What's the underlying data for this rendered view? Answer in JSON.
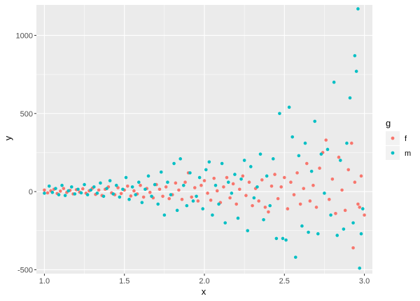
{
  "chart_data": {
    "type": "scatter",
    "title": "",
    "xlabel": "x",
    "ylabel": "y",
    "xlim": [
      0.95,
      3.05
    ],
    "ylim": [
      -525,
      1195
    ],
    "x_ticks": [
      "1.0",
      "1.5",
      "2.0",
      "2.5",
      "3.0"
    ],
    "y_ticks": [
      "-500",
      "0",
      "500",
      "1000"
    ],
    "x_tick_values": [
      1.0,
      1.5,
      2.0,
      2.5,
      3.0
    ],
    "y_tick_values": [
      -500,
      0,
      500,
      1000
    ],
    "grid": true,
    "legend": {
      "title": "g",
      "position": "right",
      "entries": [
        {
          "label": "f",
          "color": "#F8766D"
        },
        {
          "label": "m",
          "color": "#00BFC4"
        }
      ]
    },
    "series": [
      {
        "name": "f",
        "color": "#F8766D",
        "points": [
          [
            1.0,
            10
          ],
          [
            1.02,
            -8
          ],
          [
            1.04,
            5
          ],
          [
            1.06,
            15
          ],
          [
            1.08,
            -12
          ],
          [
            1.1,
            3
          ],
          [
            1.12,
            20
          ],
          [
            1.14,
            -5
          ],
          [
            1.16,
            8
          ],
          [
            1.18,
            -15
          ],
          [
            1.2,
            12
          ],
          [
            1.22,
            -3
          ],
          [
            1.24,
            18
          ],
          [
            1.26,
            -10
          ],
          [
            1.28,
            5
          ],
          [
            1.3,
            22
          ],
          [
            1.32,
            -18
          ],
          [
            1.34,
            10
          ],
          [
            1.36,
            -25
          ],
          [
            1.38,
            15
          ],
          [
            1.4,
            30
          ],
          [
            1.42,
            -8
          ],
          [
            1.44,
            -20
          ],
          [
            1.46,
            25
          ],
          [
            1.48,
            -12
          ],
          [
            1.5,
            10
          ],
          [
            1.52,
            35
          ],
          [
            1.54,
            -28
          ],
          [
            1.56,
            5
          ],
          [
            1.58,
            -15
          ],
          [
            1.6,
            40
          ],
          [
            1.62,
            -35
          ],
          [
            1.64,
            20
          ],
          [
            1.66,
            -5
          ],
          [
            1.68,
            -40
          ],
          [
            1.7,
            45
          ],
          [
            1.72,
            15
          ],
          [
            1.74,
            -30
          ],
          [
            1.76,
            30
          ],
          [
            1.78,
            -45
          ],
          [
            1.8,
            -20
          ],
          [
            1.82,
            55
          ],
          [
            1.84,
            10
          ],
          [
            1.86,
            -50
          ],
          [
            1.88,
            60
          ],
          [
            1.9,
            120
          ],
          [
            1.92,
            -35
          ],
          [
            1.94,
            25
          ],
          [
            1.96,
            -60
          ],
          [
            1.98,
            40
          ],
          [
            2.0,
            70
          ],
          [
            2.02,
            -10
          ],
          [
            2.04,
            -55
          ],
          [
            2.06,
            85
          ],
          [
            2.08,
            5
          ],
          [
            2.1,
            -70
          ],
          [
            2.12,
            30
          ],
          [
            2.14,
            90
          ],
          [
            2.16,
            -40
          ],
          [
            2.18,
            50
          ],
          [
            2.2,
            -80
          ],
          [
            2.22,
            15
          ],
          [
            2.24,
            100
          ],
          [
            2.26,
            -25
          ],
          [
            2.28,
            60
          ],
          [
            2.3,
            -90
          ],
          [
            2.32,
            20
          ],
          [
            2.34,
            -60
          ],
          [
            2.36,
            75
          ],
          [
            2.38,
            -100
          ],
          [
            2.4,
            -130
          ],
          [
            2.42,
            35
          ],
          [
            2.44,
            110
          ],
          [
            2.46,
            -45
          ],
          [
            2.48,
            30
          ],
          [
            2.5,
            90
          ],
          [
            2.52,
            -110
          ],
          [
            2.54,
            60
          ],
          [
            2.56,
            -20
          ],
          [
            2.58,
            120
          ],
          [
            2.6,
            -80
          ],
          [
            2.62,
            20
          ],
          [
            2.64,
            180
          ],
          [
            2.66,
            -60
          ],
          [
            2.68,
            40
          ],
          [
            2.7,
            -100
          ],
          [
            2.72,
            150
          ],
          [
            2.74,
            250
          ],
          [
            2.76,
            330
          ],
          [
            2.78,
            -50
          ],
          [
            2.8,
            80
          ],
          [
            2.82,
            -140
          ],
          [
            2.84,
            220
          ],
          [
            2.86,
            10
          ],
          [
            2.88,
            -120
          ],
          [
            2.9,
            140
          ],
          [
            2.92,
            310
          ],
          [
            2.93,
            -360
          ],
          [
            2.94,
            60
          ],
          [
            2.96,
            -80
          ],
          [
            2.97,
            -100
          ],
          [
            2.98,
            100
          ],
          [
            3.0,
            -150
          ]
        ]
      },
      {
        "name": "m",
        "color": "#00BFC4",
        "points": [
          [
            1.0,
            -10
          ],
          [
            1.03,
            35
          ],
          [
            1.05,
            -5
          ],
          [
            1.07,
            20
          ],
          [
            1.09,
            -20
          ],
          [
            1.11,
            40
          ],
          [
            1.13,
            -25
          ],
          [
            1.15,
            5
          ],
          [
            1.17,
            30
          ],
          [
            1.19,
            -15
          ],
          [
            1.21,
            15
          ],
          [
            1.23,
            -8
          ],
          [
            1.25,
            45
          ],
          [
            1.27,
            -20
          ],
          [
            1.29,
            10
          ],
          [
            1.31,
            30
          ],
          [
            1.33,
            -10
          ],
          [
            1.35,
            55
          ],
          [
            1.37,
            -30
          ],
          [
            1.39,
            20
          ],
          [
            1.41,
            70
          ],
          [
            1.43,
            -15
          ],
          [
            1.45,
            40
          ],
          [
            1.47,
            -35
          ],
          [
            1.49,
            15
          ],
          [
            1.51,
            90
          ],
          [
            1.53,
            -50
          ],
          [
            1.55,
            30
          ],
          [
            1.57,
            -20
          ],
          [
            1.59,
            60
          ],
          [
            1.61,
            -70
          ],
          [
            1.63,
            15
          ],
          [
            1.65,
            100
          ],
          [
            1.67,
            -30
          ],
          [
            1.69,
            45
          ],
          [
            1.71,
            -80
          ],
          [
            1.73,
            125
          ],
          [
            1.75,
            -150
          ],
          [
            1.77,
            60
          ],
          [
            1.79,
            -20
          ],
          [
            1.81,
            180
          ],
          [
            1.83,
            -120
          ],
          [
            1.85,
            210
          ],
          [
            1.87,
            40
          ],
          [
            1.89,
            -90
          ],
          [
            1.91,
            120
          ],
          [
            1.93,
            -60
          ],
          [
            1.95,
            -30
          ],
          [
            1.97,
            90
          ],
          [
            1.99,
            -110
          ],
          [
            2.01,
            140
          ],
          [
            2.03,
            190
          ],
          [
            2.05,
            -150
          ],
          [
            2.07,
            40
          ],
          [
            2.09,
            -80
          ],
          [
            2.11,
            180
          ],
          [
            2.13,
            -200
          ],
          [
            2.15,
            60
          ],
          [
            2.17,
            -10
          ],
          [
            2.19,
            110
          ],
          [
            2.21,
            -170
          ],
          [
            2.23,
            80
          ],
          [
            2.25,
            200
          ],
          [
            2.27,
            -250
          ],
          [
            2.29,
            160
          ],
          [
            2.31,
            -40
          ],
          [
            2.33,
            30
          ],
          [
            2.35,
            240
          ],
          [
            2.37,
            -180
          ],
          [
            2.39,
            100
          ],
          [
            2.41,
            -90
          ],
          [
            2.43,
            210
          ],
          [
            2.45,
            -300
          ],
          [
            2.47,
            500
          ],
          [
            2.49,
            -300
          ],
          [
            2.51,
            -310
          ],
          [
            2.53,
            540
          ],
          [
            2.55,
            350
          ],
          [
            2.57,
            -420
          ],
          [
            2.59,
            230
          ],
          [
            2.61,
            -220
          ],
          [
            2.63,
            310
          ],
          [
            2.65,
            -260
          ],
          [
            2.67,
            130
          ],
          [
            2.69,
            450
          ],
          [
            2.71,
            -270
          ],
          [
            2.73,
            240
          ],
          [
            2.75,
            -10
          ],
          [
            2.77,
            270
          ],
          [
            2.79,
            -150
          ],
          [
            2.81,
            700
          ],
          [
            2.83,
            -280
          ],
          [
            2.85,
            200
          ],
          [
            2.87,
            -240
          ],
          [
            2.89,
            310
          ],
          [
            2.91,
            600
          ],
          [
            2.93,
            -200
          ],
          [
            2.94,
            870
          ],
          [
            2.95,
            770
          ],
          [
            2.96,
            1170
          ],
          [
            2.97,
            -490
          ],
          [
            2.98,
            -270
          ],
          [
            2.99,
            -110
          ]
        ]
      }
    ]
  }
}
